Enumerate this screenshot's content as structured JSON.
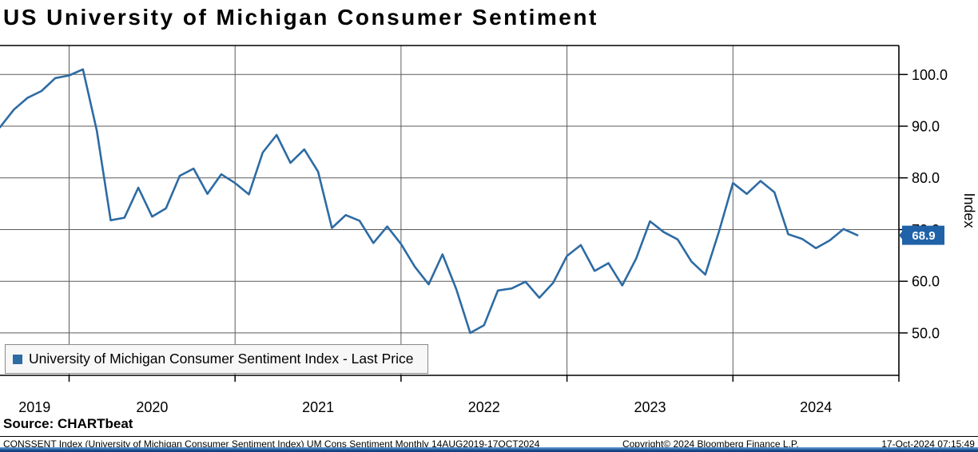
{
  "title": "US University of Michigan Consumer Sentiment",
  "source_line": "Source: CHARTbeat",
  "legend": {
    "label": "University of Michigan Consumer Sentiment Index - Last Price"
  },
  "footer": {
    "left": "CONSSENT Index (University of Michigan Consumer Sentiment Index) UM Cons Sentiment  Monthly 14AUG2019-17OCT2024",
    "center": "Copyright© 2024 Bloomberg Finance L.P.",
    "right": "17-Oct-2024 07:15:49"
  },
  "chart_data": {
    "type": "line",
    "title": "US University of Michigan Consumer Sentiment",
    "ylabel": "Index",
    "frequency": "Monthly",
    "x_start": "Aug 2019",
    "x_end": "Oct 2024",
    "x_axis_year_labels": [
      "2019",
      "2020",
      "2021",
      "2022",
      "2023",
      "2024"
    ],
    "series": [
      {
        "name": "University of Michigan Consumer Sentiment Index - Last Price",
        "values": [
          89.8,
          93.2,
          95.5,
          96.8,
          99.3,
          99.8,
          101.0,
          89.1,
          71.8,
          72.3,
          78.1,
          72.5,
          74.1,
          80.4,
          81.8,
          76.9,
          80.7,
          79.0,
          76.8,
          84.9,
          88.3,
          82.9,
          85.5,
          81.2,
          70.3,
          72.8,
          71.7,
          67.4,
          70.6,
          67.2,
          62.8,
          59.4,
          65.2,
          58.4,
          50.0,
          51.5,
          58.2,
          58.6,
          59.9,
          56.8,
          59.7,
          64.9,
          67.0,
          62.0,
          63.5,
          59.2,
          64.4,
          71.6,
          69.5,
          68.1,
          63.8,
          61.3,
          69.7,
          79.0,
          76.9,
          79.4,
          77.2,
          69.1,
          68.2,
          66.4,
          67.9,
          70.1,
          68.9
        ]
      }
    ],
    "last_price": 68.9,
    "last_price_label": "68.9",
    "ylim": [
      41.8,
      105.6
    ],
    "yticks": [
      50,
      60,
      70,
      80,
      90,
      100
    ],
    "ytick_labels": [
      "50.0",
      "60.0",
      "70.0",
      "80.0",
      "90.0",
      "100.0"
    ],
    "grid": true,
    "legend_position": "bottom-left-inside",
    "colors": {
      "line": "#2d6ba3",
      "last_price_badge": "#2062a8",
      "legend_swatch": "#2d6ba3",
      "bottom_bar": "#1b4f93"
    }
  }
}
